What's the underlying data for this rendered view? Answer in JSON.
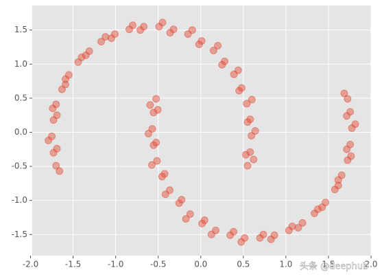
{
  "chart_data": {
    "type": "scatter",
    "color": "#e24a33",
    "grid": true,
    "xlim": [
      -1.98,
      2.0
    ],
    "ylim": [
      -1.81,
      1.86
    ],
    "xticks": [
      {
        "value": -2,
        "label": "-2.0"
      },
      {
        "value": -1.5,
        "label": "-1.5"
      },
      {
        "value": -1,
        "label": "-1.0"
      },
      {
        "value": -0.5,
        "label": "-0.5"
      },
      {
        "value": 0,
        "label": "0.0"
      },
      {
        "value": 0.5,
        "label": "0.5"
      },
      {
        "value": 1,
        "label": "1.0"
      },
      {
        "value": 1.5,
        "label": "1.5"
      },
      {
        "value": 2,
        "label": "2.0"
      }
    ],
    "yticks": [
      {
        "value": -1.5,
        "label": "-1.5"
      },
      {
        "value": -1,
        "label": "-1.0"
      },
      {
        "value": -0.5,
        "label": "-0.5"
      },
      {
        "value": 0,
        "label": "0.0"
      },
      {
        "value": 0.5,
        "label": "0.5"
      },
      {
        "value": 1,
        "label": "1.0"
      },
      {
        "value": 1.5,
        "label": "1.5"
      }
    ],
    "x": [
      0.55,
      0.58,
      0.595,
      0.58,
      0.54,
      0.48,
      0.39,
      0.28,
      0.15,
      0.01,
      -0.15,
      -0.32,
      -0.49,
      -0.67,
      -0.84,
      -1.01,
      -1.17,
      -1.31,
      -1.44,
      -1.55,
      -1.63,
      -1.7,
      -1.73,
      -1.75,
      -1.73,
      -1.7,
      0.62,
      0.53,
      0.64,
      0.55,
      0.6,
      0.45,
      0.44,
      0.25,
      0.2,
      -0.02,
      -0.1,
      -0.36,
      -0.45,
      -0.71,
      -0.8,
      -1.05,
      -1.12,
      -1.35,
      -1.4,
      -1.59,
      -1.59,
      -1.74,
      -1.69,
      -1.79,
      -1.69,
      -1.66,
      -0.525,
      -0.555,
      -0.57,
      -0.555,
      -0.515,
      -0.455,
      -0.365,
      -0.255,
      -0.125,
      0.015,
      0.175,
      0.345,
      0.515,
      0.695,
      0.865,
      1.035,
      1.195,
      1.335,
      1.465,
      1.575,
      1.655,
      1.725,
      1.755,
      1.775,
      1.755,
      1.725,
      -0.595,
      -0.505,
      -0.615,
      -0.525,
      -0.575,
      -0.425,
      -0.415,
      -0.225,
      -0.175,
      0.045,
      0.125,
      0.385,
      0.475,
      0.735,
      0.825,
      1.075,
      1.145,
      1.375,
      1.425,
      1.615,
      1.615,
      1.765,
      1.715,
      1.815,
      1.715,
      1.685
    ],
    "y": [
      -0.49,
      -0.29,
      -0.05,
      0.19,
      0.42,
      0.65,
      0.85,
      1.04,
      1.2,
      1.34,
      1.44,
      1.51,
      1.55,
      1.55,
      1.51,
      1.44,
      1.33,
      1.19,
      1.03,
      0.84,
      0.63,
      0.41,
      0.18,
      -0.06,
      -0.3,
      -0.49,
      -0.4,
      -0.33,
      0.02,
      0.15,
      0.48,
      0.61,
      0.91,
      0.99,
      1.27,
      1.29,
      1.5,
      1.46,
      1.61,
      1.5,
      1.57,
      1.38,
      1.4,
      1.13,
      1.1,
      0.78,
      0.7,
      0.35,
      0.25,
      -0.12,
      -0.24,
      -0.57,
      0.49,
      0.29,
      0.05,
      -0.19,
      -0.42,
      -0.65,
      -0.85,
      -1.04,
      -1.2,
      -1.34,
      -1.44,
      -1.51,
      -1.55,
      -1.55,
      -1.51,
      -1.44,
      -1.33,
      -1.19,
      -1.03,
      -0.84,
      -0.63,
      -0.41,
      -0.18,
      0.06,
      0.3,
      0.49,
      0.4,
      0.33,
      -0.02,
      -0.15,
      -0.48,
      -0.61,
      -0.91,
      -0.99,
      -1.27,
      -1.29,
      -1.5,
      -1.46,
      -1.61,
      -1.5,
      -1.57,
      -1.38,
      -1.4,
      -1.13,
      -1.1,
      -0.78,
      -0.7,
      -0.35,
      -0.25,
      0.12,
      0.24,
      0.57
    ]
  },
  "watermark": "头条 @deephub"
}
